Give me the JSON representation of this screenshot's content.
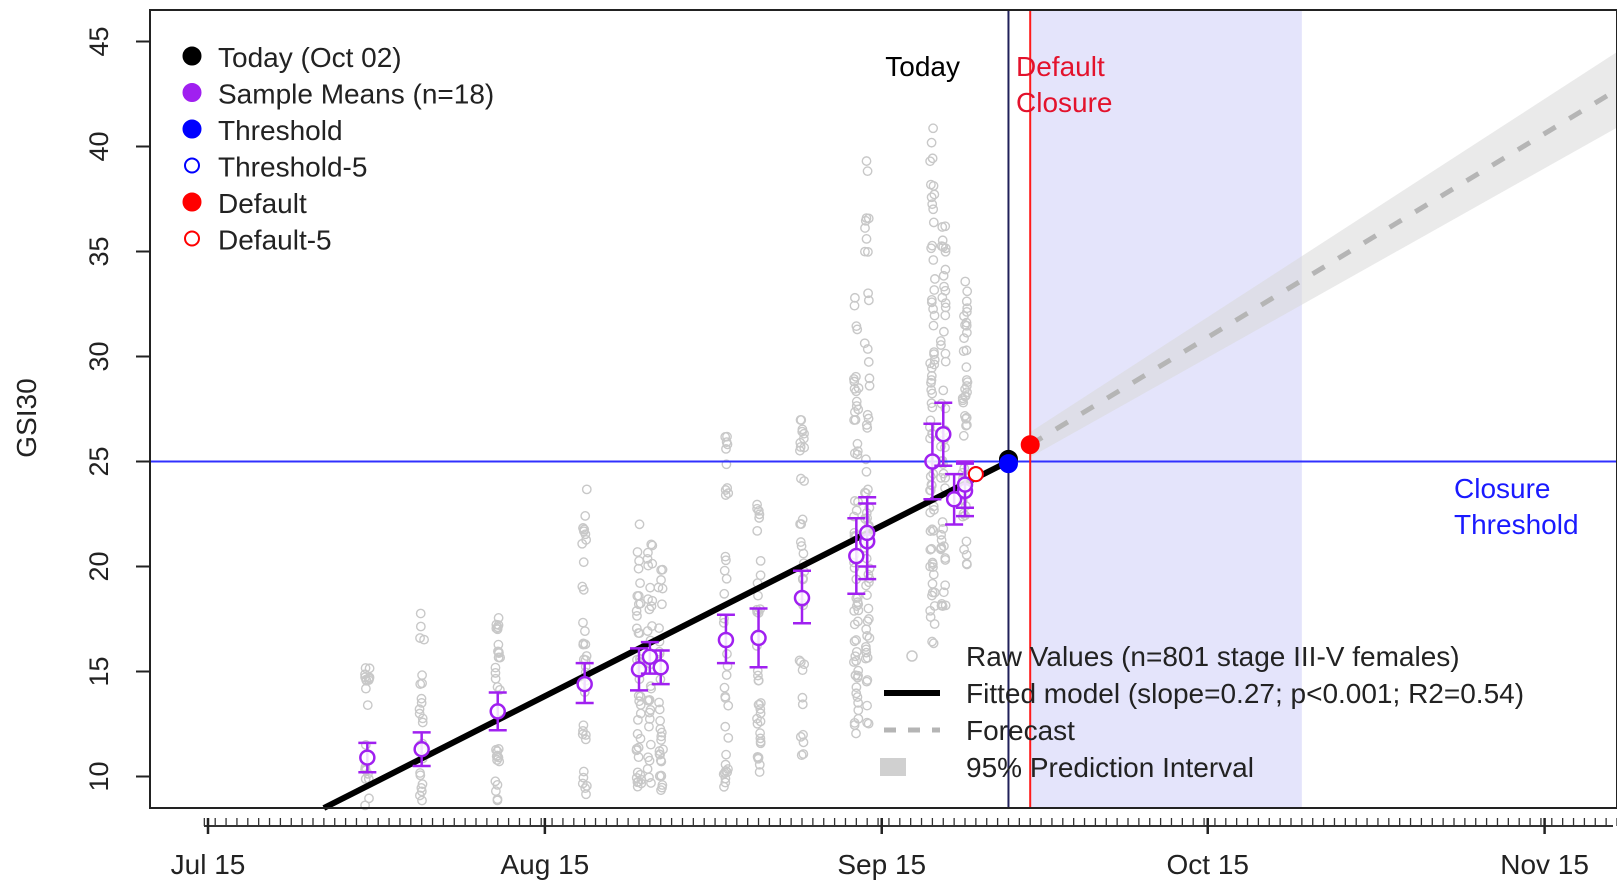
{
  "chart_data": {
    "type": "scatter",
    "ylabel": "GSI30",
    "x_ticks": [
      "Jul 15",
      "Aug 15",
      "Sep 15",
      "Oct 15",
      "Nov 15"
    ],
    "y_ticks": [
      "10",
      "15",
      "20",
      "25",
      "30",
      "35",
      "40",
      "45"
    ],
    "xlim": [
      "2023-07-15",
      "2023-11-27"
    ],
    "ylim": [
      8.5,
      46.5
    ],
    "grid": false,
    "top_legend": [
      {
        "label": "Today (Oct 02)",
        "symbol": "filled",
        "color": "#000000"
      },
      {
        "label": "Sample Means (n=18)",
        "symbol": "filled",
        "color": "#a020f0"
      },
      {
        "label": "Threshold",
        "symbol": "filled",
        "color": "#0000ff"
      },
      {
        "label": "Threshold-5",
        "symbol": "open",
        "color": "#0000ff"
      },
      {
        "label": "Default",
        "symbol": "filled",
        "color": "#ff0000"
      },
      {
        "label": "Default-5",
        "symbol": "open",
        "color": "#ff0000"
      }
    ],
    "bottom_legend": [
      {
        "label": "Raw Values (n=801 stage III-V females)",
        "symbol": "open-point"
      },
      {
        "label": "Fitted model (slope=0.27; p<0.001; R2=0.54)",
        "symbol": "line"
      },
      {
        "label": "Forecast",
        "symbol": "dashed"
      },
      {
        "label": "95% Prediction Interval",
        "symbol": "band"
      }
    ],
    "annotations": {
      "today": "Today",
      "default_closure_1": "Default",
      "default_closure_2": "Closure",
      "closure_threshold_1": "Closure",
      "closure_threshold_2": "Threshold"
    },
    "threshold": 25,
    "today_date": "2023-10-02",
    "default_closure_date": "2023-10-04",
    "shaded_window": [
      "2023-10-04",
      "2023-10-29"
    ],
    "fitted_line": {
      "x": [
        "2023-07-31",
        "2023-10-02"
      ],
      "y": [
        8.5,
        25.0
      ]
    },
    "forecast": {
      "x": [
        "2023-10-04",
        "2023-11-27"
      ],
      "y": [
        25.8,
        42.7
      ],
      "pi_halfwidth": [
        0.6,
        1.8
      ]
    },
    "markers": [
      {
        "name": "today",
        "x": "2023-10-02",
        "y": 25.1,
        "color": "#000000",
        "open": false
      },
      {
        "name": "threshold",
        "x": "2023-10-02",
        "y": 24.9,
        "color": "#0000ff",
        "open": false
      },
      {
        "name": "threshold-5",
        "x": "2023-09-29",
        "y": 24.4,
        "color": "#0000ff",
        "open": true
      },
      {
        "name": "default",
        "x": "2023-10-04",
        "y": 25.8,
        "color": "#ff0000",
        "open": false
      },
      {
        "name": "default-5",
        "x": "2023-09-29",
        "y": 24.4,
        "color": "#ff0000",
        "open": true
      }
    ],
    "sample_means": [
      {
        "x": "2023-08-04",
        "y": 10.9,
        "lo": 10.2,
        "hi": 11.6
      },
      {
        "x": "2023-08-09",
        "y": 11.3,
        "lo": 10.5,
        "hi": 12.1
      },
      {
        "x": "2023-08-16",
        "y": 13.1,
        "lo": 12.2,
        "hi": 14.0
      },
      {
        "x": "2023-08-24",
        "y": 14.4,
        "lo": 13.5,
        "hi": 15.4
      },
      {
        "x": "2023-08-29",
        "y": 15.1,
        "lo": 14.1,
        "hi": 16.1
      },
      {
        "x": "2023-08-30",
        "y": 15.7,
        "lo": 14.9,
        "hi": 16.4
      },
      {
        "x": "2023-08-31",
        "y": 15.2,
        "lo": 14.4,
        "hi": 16.0
      },
      {
        "x": "2023-09-06",
        "y": 16.5,
        "lo": 15.4,
        "hi": 17.7
      },
      {
        "x": "2023-09-09",
        "y": 16.6,
        "lo": 15.2,
        "hi": 18.0
      },
      {
        "x": "2023-09-13",
        "y": 18.5,
        "lo": 17.3,
        "hi": 19.8
      },
      {
        "x": "2023-09-18",
        "y": 20.5,
        "lo": 18.7,
        "hi": 22.3
      },
      {
        "x": "2023-09-19",
        "y": 21.2,
        "lo": 19.4,
        "hi": 23.0
      },
      {
        "x": "2023-09-19",
        "y": 21.6,
        "lo": 20.0,
        "hi": 23.3
      },
      {
        "x": "2023-09-25",
        "y": 25.0,
        "lo": 23.2,
        "hi": 26.8
      },
      {
        "x": "2023-09-26",
        "y": 26.3,
        "lo": 24.8,
        "hi": 27.8
      },
      {
        "x": "2023-09-27",
        "y": 23.2,
        "lo": 22.0,
        "hi": 24.4
      },
      {
        "x": "2023-09-28",
        "y": 23.6,
        "lo": 22.4,
        "hi": 24.9
      },
      {
        "x": "2023-09-28",
        "y": 23.9,
        "lo": 22.8,
        "hi": 25.0
      }
    ],
    "raw_groups": [
      {
        "x": "2023-08-04",
        "min": 8.6,
        "max": 15.3,
        "n": 20
      },
      {
        "x": "2023-08-09",
        "min": 8.6,
        "max": 17.8,
        "n": 24
      },
      {
        "x": "2023-08-16",
        "min": 8.8,
        "max": 18.4,
        "n": 30
      },
      {
        "x": "2023-08-24",
        "min": 9.0,
        "max": 23.8,
        "n": 36
      },
      {
        "x": "2023-08-29",
        "min": 9.5,
        "max": 22.7,
        "n": 40
      },
      {
        "x": "2023-08-30",
        "min": 9.5,
        "max": 22.0,
        "n": 30
      },
      {
        "x": "2023-08-31",
        "min": 9.3,
        "max": 20.0,
        "n": 30
      },
      {
        "x": "2023-09-06",
        "min": 9.5,
        "max": 26.7,
        "n": 36
      },
      {
        "x": "2023-09-09",
        "min": 10.2,
        "max": 23.5,
        "n": 36
      },
      {
        "x": "2023-09-13",
        "min": 11.0,
        "max": 27.3,
        "n": 36
      },
      {
        "x": "2023-09-18",
        "min": 12.0,
        "max": 33.6,
        "n": 60
      },
      {
        "x": "2023-09-19",
        "min": 12.5,
        "max": 39.8,
        "n": 60
      },
      {
        "x": "2023-09-25",
        "min": 16.0,
        "max": 41.3,
        "n": 70
      },
      {
        "x": "2023-09-26",
        "min": 18.0,
        "max": 36.5,
        "n": 50
      },
      {
        "x": "2023-09-28",
        "min": 20.0,
        "max": 34.0,
        "n": 50
      }
    ]
  }
}
